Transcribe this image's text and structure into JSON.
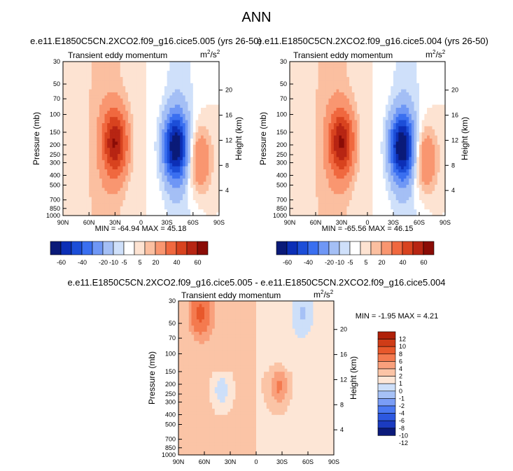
{
  "figure": {
    "title": "ANN",
    "colors": {
      "abs_palette": [
        "#0a1a78",
        "#0c2fb6",
        "#1c4ed8",
        "#3a6ff0",
        "#6f97f5",
        "#a4bff5",
        "#cfe0fa",
        "#ffffff",
        "#fde3d2",
        "#fbbfa0",
        "#f99670",
        "#f0683f",
        "#d8431f",
        "#b72513",
        "#8a0c06"
      ],
      "diff_palette": [
        "#0b1a7a",
        "#1b3bc0",
        "#2d58e0",
        "#4a78f2",
        "#7a9df6",
        "#a6c1f6",
        "#cddff9",
        "#fde6d6",
        "#fbc4a6",
        "#f9a07c",
        "#f47a4f",
        "#e8582b",
        "#cf3c17",
        "#b02109"
      ]
    }
  },
  "chart_data": [
    {
      "type": "heatmap",
      "title": "e.e11.E1850C5CN.2XCO2.f09_g16.cice5.005 (yrs 26-50)",
      "subtitle": "Transient eddy momentum",
      "units": "m²/s²",
      "units_base": "m",
      "units_mid": "/s",
      "units_sup": "2",
      "ylabel": "Pressure (mb)",
      "ylabel_right": "Height (km)",
      "x_ticks": [
        "90N",
        "60N",
        "30N",
        "0",
        "30S",
        "60S",
        "90S"
      ],
      "x_range": [
        90,
        -90
      ],
      "y_ticks": [
        30,
        50,
        70,
        100,
        150,
        200,
        250,
        300,
        400,
        500,
        700,
        850,
        1000
      ],
      "y_range": [
        30,
        1000
      ],
      "height_ticks": [
        20,
        16,
        12,
        8,
        4
      ],
      "min_max": "MIN = -64.94   MAX =  45.18",
      "extremes": [
        {
          "lat": 30,
          "p": 190,
          "value": 45.18
        },
        {
          "lat": -40,
          "p": 210,
          "value": -64.94
        },
        {
          "lat": -67,
          "p": 280,
          "value": 22
        }
      ]
    },
    {
      "type": "heatmap",
      "title": "e.e11.E1850C5CN.2XCO2.f09_g16.cice5.004 (yrs 26-50)",
      "subtitle": "Transient eddy momentum",
      "units": "m²/s²",
      "units_base": "m",
      "units_mid": "/s",
      "units_sup": "2",
      "ylabel": "Pressure (mb)",
      "ylabel_right": "Height (km)",
      "x_ticks": [
        "90N",
        "60N",
        "30N",
        "0",
        "30S",
        "60S",
        "90S"
      ],
      "x_range": [
        90,
        -90
      ],
      "y_ticks": [
        30,
        50,
        70,
        100,
        150,
        200,
        250,
        300,
        400,
        500,
        700,
        850,
        1000
      ],
      "y_range": [
        30,
        1000
      ],
      "height_ticks": [
        20,
        16,
        12,
        8,
        4
      ],
      "min_max": "MIN = -65.56   MAX =  46.15",
      "extremes": [
        {
          "lat": 30,
          "p": 190,
          "value": 46.15
        },
        {
          "lat": -40,
          "p": 210,
          "value": -65.56
        },
        {
          "lat": -67,
          "p": 280,
          "value": 22
        }
      ]
    },
    {
      "type": "heatmap",
      "title": "e.e11.E1850C5CN.2XCO2.f09_g16.cice5.005 - e.e11.E1850C5CN.2XCO2.f09_g16.cice5.004",
      "subtitle": "Transient eddy momentum",
      "units": "m²/s²",
      "units_base": "m",
      "units_mid": "/s",
      "units_sup": "2",
      "ylabel": "Pressure (mb)",
      "ylabel_right": "Height (km)",
      "x_ticks": [
        "90N",
        "60N",
        "30N",
        "0",
        "30S",
        "60S",
        "90S"
      ],
      "x_range": [
        90,
        -90
      ],
      "y_ticks": [
        30,
        50,
        70,
        100,
        150,
        200,
        250,
        300,
        400,
        500,
        700,
        850,
        1000
      ],
      "y_range": [
        30,
        1000
      ],
      "height_ticks": [
        20,
        16,
        12,
        8,
        4
      ],
      "min_max": "MIN =  -1.95   MAX =   4.21",
      "extremes": [
        {
          "lat": 65,
          "p": 40,
          "value": 4.21
        },
        {
          "lat": -27,
          "p": 210,
          "value": 2.5
        },
        {
          "lat": 40,
          "p": 230,
          "value": -1.95
        },
        {
          "lat": -55,
          "p": 40,
          "value": -1.5
        }
      ]
    }
  ],
  "colorbars": {
    "horizontal_labels": [
      "-60",
      "-40",
      "-20",
      "-10",
      "-5",
      "5",
      "20",
      "40",
      "60"
    ],
    "vertical_labels": [
      "12",
      "10",
      "8",
      "6",
      "4",
      "2",
      "1",
      "0",
      "-1",
      "-2",
      "-4",
      "-6",
      "-8",
      "-10",
      "-12"
    ]
  }
}
